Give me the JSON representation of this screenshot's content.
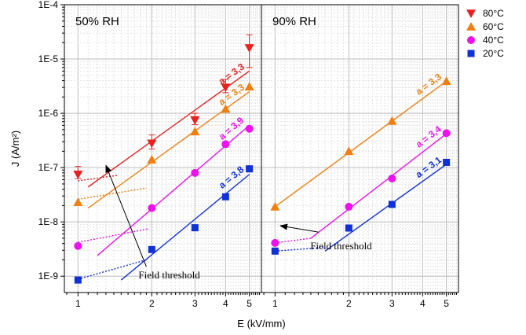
{
  "chart_data": {
    "type": "scatter",
    "xlabel": "E (kV/mm)",
    "ylabel": "J (A/m²)",
    "x_scale": "log",
    "y_scale": "log",
    "xlim": [
      0.88,
      5.6
    ],
    "ylim": [
      5e-10,
      0.0001
    ],
    "x_ticks": [
      1,
      2,
      3,
      4,
      5
    ],
    "y_tick_labels": [
      "1E-9",
      "1E-8",
      "1E-7",
      "1E-6",
      "1E-5",
      "1E-4"
    ],
    "grid": true,
    "legend": {
      "position": "top-right",
      "entries": [
        {
          "label": "80°C",
          "marker": "triangle-down",
          "color": "#e8201e"
        },
        {
          "label": "60°C",
          "marker": "triangle-up",
          "color": "#f07f0f"
        },
        {
          "label": "40°C",
          "marker": "circle",
          "color": "#ee10ee"
        },
        {
          "label": "20°C",
          "marker": "square",
          "color": "#1030d8"
        }
      ]
    },
    "panels": [
      {
        "title": "50% RH",
        "series": [
          {
            "name": "80°C",
            "marker": "triangle-down",
            "color": "#e8201e",
            "points": [
              {
                "x": 1,
                "y": 7.5e-08,
                "err_low": 6.3e-08,
                "err_high": 1.05e-07
              },
              {
                "x": 2,
                "y": 2.8e-07,
                "err_low": 2.2e-07,
                "err_high": 4e-07
              },
              {
                "x": 3,
                "y": 7.5e-07,
                "err_low": 6.2e-07,
                "err_high": 1e-06
              },
              {
                "x": 4,
                "y": 3e-06,
                "err_low": 2.4e-06,
                "err_high": 4.2e-06
              },
              {
                "x": 5,
                "y": 1.6e-05,
                "err_low": 7e-06,
                "err_high": 2.8e-05
              }
            ],
            "fit": {
              "x1": 1.1,
              "y1": 4.4e-08,
              "x2": 5,
              "y2": 6e-06
            },
            "threshold": {
              "x1": 1,
              "y1": 5.7e-08,
              "x2": 1.45,
              "y2": 7.2e-08
            },
            "slope_label": "a = 3,3"
          },
          {
            "name": "60°C",
            "marker": "triangle-up",
            "color": "#f07f0f",
            "points": [
              {
                "x": 1,
                "y": 2.3e-08
              },
              {
                "x": 2,
                "y": 1.4e-07
              },
              {
                "x": 3,
                "y": 4.6e-07
              },
              {
                "x": 4,
                "y": 1.2e-06
              },
              {
                "x": 5,
                "y": 3.1e-06
              }
            ],
            "fit": {
              "x1": 1.1,
              "y1": 1.8e-08,
              "x2": 5,
              "y2": 2.5e-06
            },
            "threshold": {
              "x1": 1,
              "y1": 2.6e-08,
              "x2": 1.9,
              "y2": 4.2e-08
            },
            "slope_label": "a = 3,3"
          },
          {
            "name": "40°C",
            "marker": "circle",
            "color": "#ee10ee",
            "points": [
              {
                "x": 1,
                "y": 3.6e-09
              },
              {
                "x": 2,
                "y": 1.8e-08
              },
              {
                "x": 3,
                "y": 8e-08
              },
              {
                "x": 4,
                "y": 2.7e-07
              },
              {
                "x": 5,
                "y": 5.2e-07
              }
            ],
            "fit": {
              "x1": 1.2,
              "y1": 2.4e-09,
              "x2": 5,
              "y2": 6e-07
            },
            "threshold": {
              "x1": 1,
              "y1": 4.2e-09,
              "x2": 1.95,
              "y2": 7.5e-09
            },
            "slope_label": "a = 3,9"
          },
          {
            "name": "20°C",
            "marker": "square",
            "color": "#1030d8",
            "points": [
              {
                "x": 1,
                "y": 8.5e-10
              },
              {
                "x": 2,
                "y": 3.1e-09
              },
              {
                "x": 3,
                "y": 7.8e-09
              },
              {
                "x": 4,
                "y": 2.9e-08
              },
              {
                "x": 5,
                "y": 9.5e-08
              }
            ],
            "fit": {
              "x1": 1.5,
              "y1": 8.5e-10,
              "x2": 5,
              "y2": 7.5e-08
            },
            "threshold": {
              "x1": 1,
              "y1": 8.8e-10,
              "x2": 1.9,
              "y2": 2e-09
            },
            "slope_label": "a = 3,8"
          }
        ],
        "annotation": {
          "text": "Field threshold",
          "arrow_from_x": 1.9,
          "arrow_from_y": 1.5e-09,
          "arrow_to_x": 1.3,
          "arrow_to_y": 1.1e-07
        }
      },
      {
        "title": "90% RH",
        "series": [
          {
            "name": "60°C",
            "marker": "triangle-up",
            "color": "#f07f0f",
            "points": [
              {
                "x": 1,
                "y": 1.9e-08
              },
              {
                "x": 2,
                "y": 2e-07
              },
              {
                "x": 3,
                "y": 7.2e-07
              },
              {
                "x": 5,
                "y": 3.9e-06
              }
            ],
            "fit": {
              "x1": 1,
              "y1": 1.9e-08,
              "x2": 5,
              "y2": 3.9e-06
            },
            "slope_label": "a = 3,3"
          },
          {
            "name": "40°C",
            "marker": "circle",
            "color": "#ee10ee",
            "points": [
              {
                "x": 1,
                "y": 4.1e-09
              },
              {
                "x": 2,
                "y": 1.9e-08
              },
              {
                "x": 3,
                "y": 6.3e-08
              },
              {
                "x": 5,
                "y": 4.3e-07
              }
            ],
            "fit": {
              "x1": 1.4,
              "y1": 5e-09,
              "x2": 5,
              "y2": 4.2e-07
            },
            "threshold": {
              "x1": 1,
              "y1": 4.1e-09,
              "x2": 1.4,
              "y2": 5e-09
            },
            "slope_label": "a = 3,4"
          },
          {
            "name": "20°C",
            "marker": "square",
            "color": "#1030d8",
            "points": [
              {
                "x": 1,
                "y": 2.9e-09
              },
              {
                "x": 2,
                "y": 7.7e-09
              },
              {
                "x": 3,
                "y": 2.1e-08
              },
              {
                "x": 5,
                "y": 1.25e-07
              }
            ],
            "fit": {
              "x1": 1.6,
              "y1": 2.9e-09,
              "x2": 5,
              "y2": 1.15e-07
            },
            "threshold": {
              "x1": 1,
              "y1": 2.9e-09,
              "x2": 1.6,
              "y2": 3.4e-09
            },
            "slope_label": "a = 3,1"
          }
        ],
        "annotation": {
          "text": "Field threshold",
          "arrow_from_x": 1.5,
          "arrow_from_y": 6.5e-09,
          "arrow_to_x": 1.05,
          "arrow_to_y": 8.5e-09
        }
      }
    ]
  }
}
